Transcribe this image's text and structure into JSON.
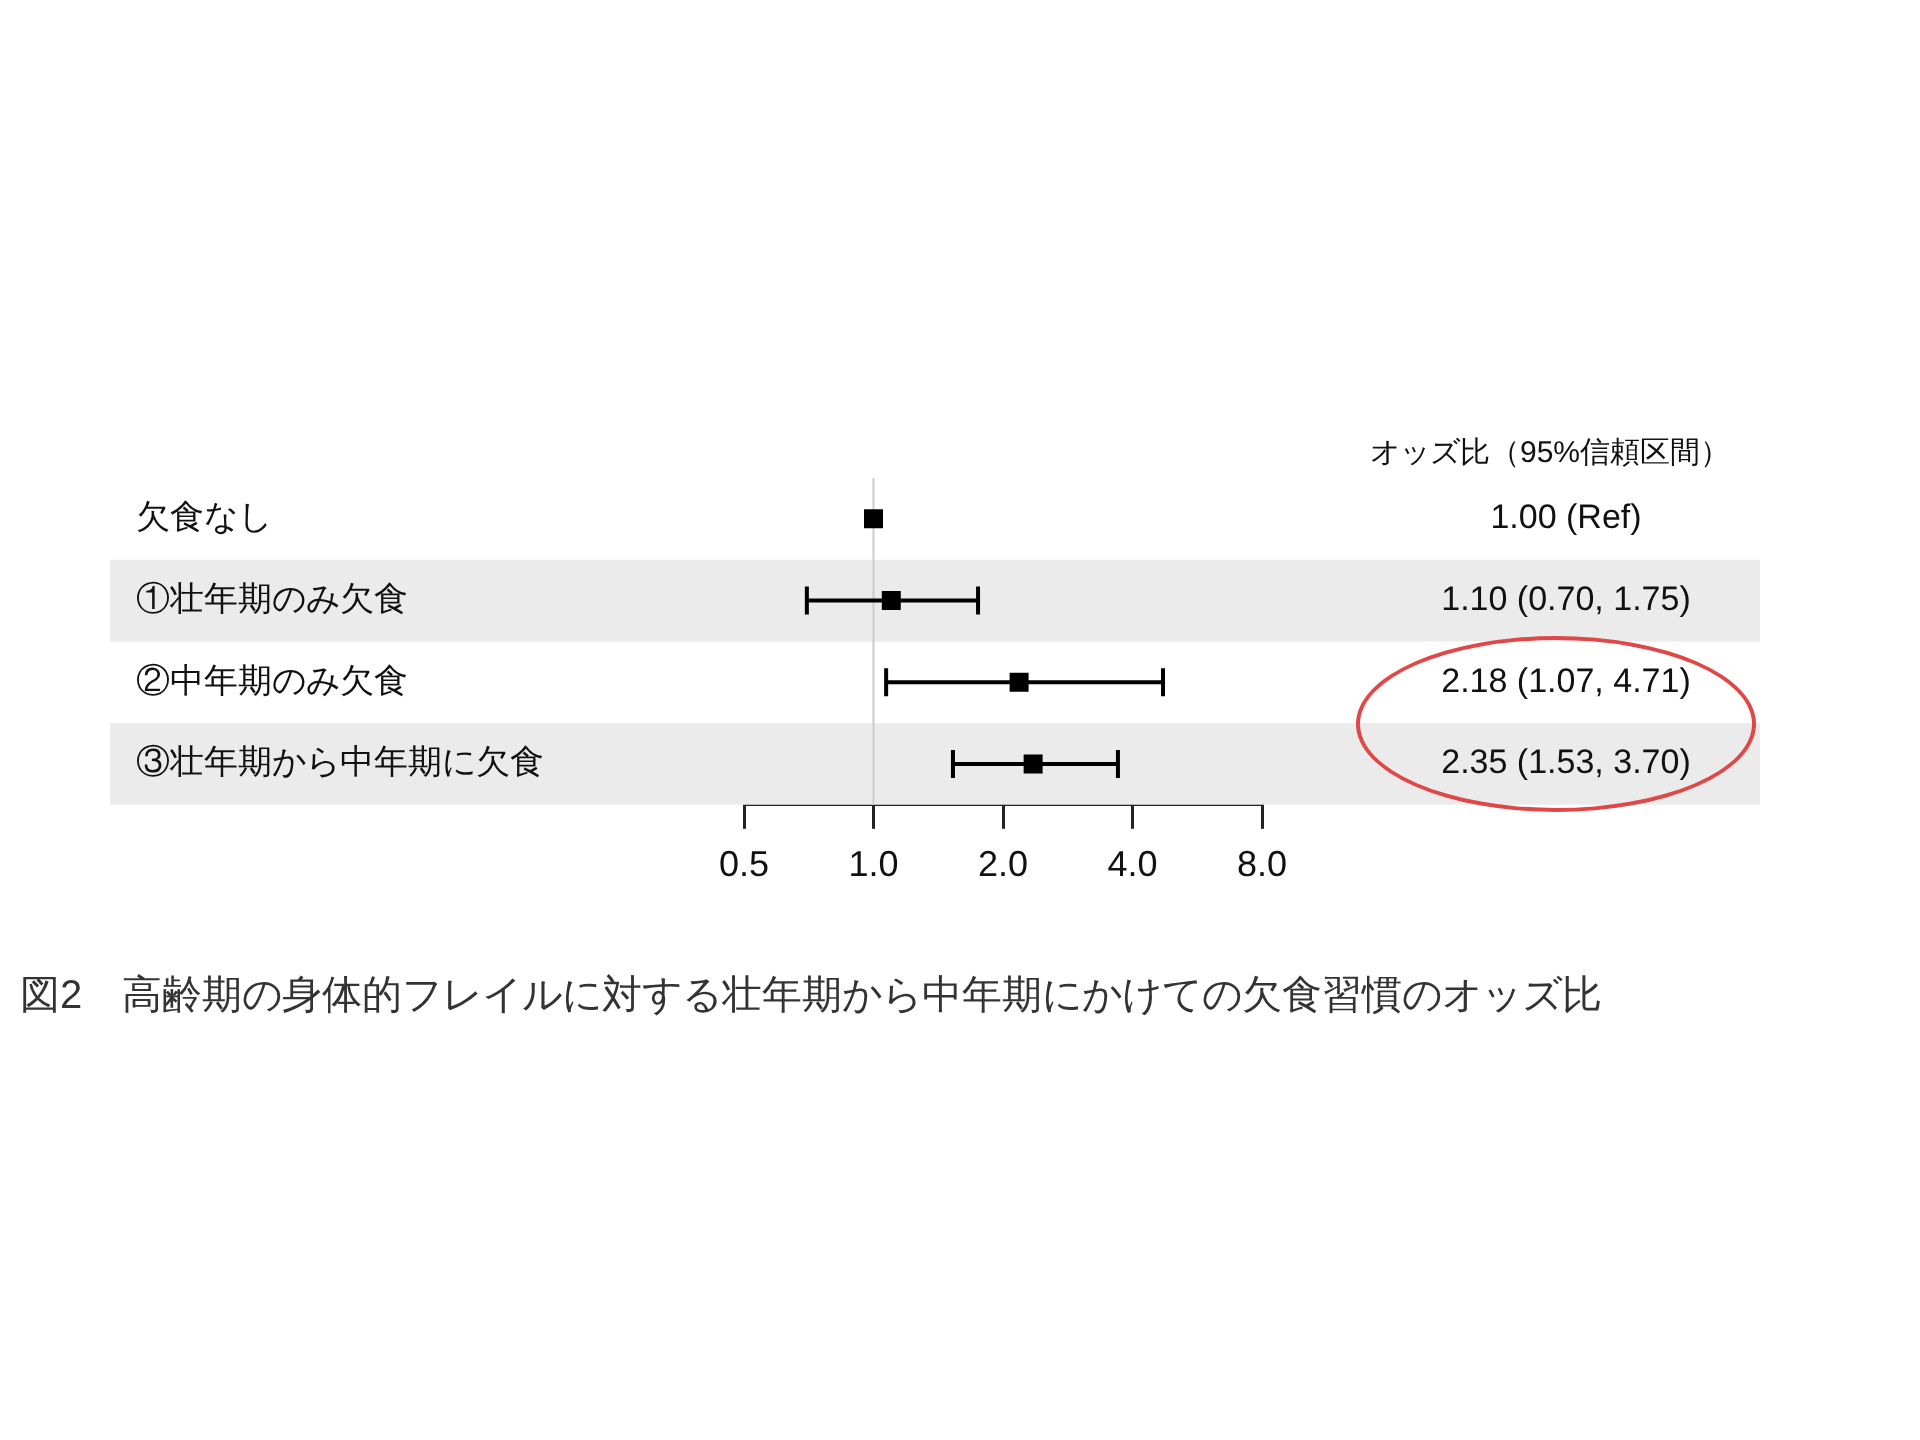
{
  "chart_data": {
    "type": "scatter",
    "orientation": "horizontal",
    "title": "図2　高齢期の身体的フレイルに対する壮年期から中年期にかけての欠食習慣のオッズ比",
    "categories": [
      "欠食なし",
      "①壮年期のみ欠食",
      "②中年期のみ欠食",
      "③壮年期から中年期に欠食"
    ],
    "values": [
      1.0,
      1.1,
      2.18,
      2.35
    ],
    "errors": [
      null,
      [
        0.7,
        1.75
      ],
      [
        1.07,
        4.71
      ],
      [
        1.53,
        3.7
      ]
    ],
    "color": "#000000",
    "marker": "square",
    "log": "x",
    "xlim": [
      0.5,
      8
    ],
    "xticks": [
      0.5,
      {
        "value": 1,
        "label": "1.0"
      },
      {
        "value": 2,
        "label": "2.0"
      },
      {
        "value": 4,
        "label": "4.0"
      },
      {
        "value": 8,
        "label": "8.0"
      }
    ],
    "ref_lines": [
      {
        "axis": "x",
        "value": 1,
        "color": "#cccccc"
      }
    ],
    "annotations": [
      "オッズ比（95%信頼区間）",
      "1.00 (Ref)",
      "1.10 (0.70, 1.75)",
      "2.18 (1.07, 4.71)",
      "2.35 (1.53, 3.70)"
    ],
    "grid": false,
    "legend": false
  }
}
